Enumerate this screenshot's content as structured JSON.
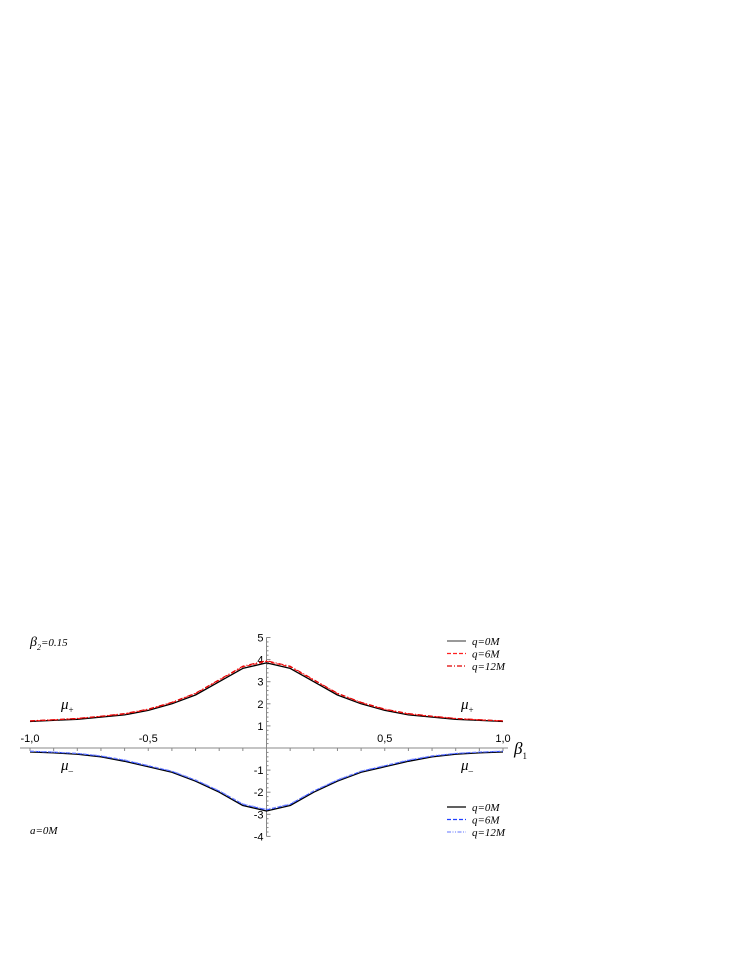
{
  "chart_data": {
    "type": "line",
    "xlabel": "β",
    "xlabel_sub": "1",
    "xlim": [
      -1,
      1
    ],
    "ylim": [
      -4,
      5
    ],
    "x_ticks": [
      {
        "v": -1,
        "label": "-1,0"
      },
      {
        "v": -0.5,
        "label": "-0,5"
      },
      {
        "v": 0.5,
        "label": "0,5"
      },
      {
        "v": 1,
        "label": "1,0"
      }
    ],
    "y_ticks": [
      {
        "v": 5,
        "label": "5"
      },
      {
        "v": 4,
        "label": "4"
      },
      {
        "v": 3,
        "label": "3"
      },
      {
        "v": 2,
        "label": "2"
      },
      {
        "v": 1,
        "label": "1"
      },
      {
        "v": -1,
        "label": "-1"
      },
      {
        "v": -2,
        "label": "-2"
      },
      {
        "v": -3,
        "label": "-3"
      },
      {
        "v": -4,
        "label": "-4"
      }
    ],
    "grid": false,
    "annotations": {
      "param_top": {
        "main": "β",
        "sub": "2",
        "rest": "=0.15"
      },
      "param_bottom": "a=0M",
      "mu_plus": {
        "main": "μ",
        "sub": "+"
      },
      "mu_minus": {
        "main": "μ",
        "sub": "–"
      }
    },
    "x": [
      -1,
      -0.9,
      -0.8,
      -0.7,
      -0.6,
      -0.5,
      -0.4,
      -0.3,
      -0.2,
      -0.1,
      0,
      0.1,
      0.2,
      0.3,
      0.4,
      0.5,
      0.6,
      0.7,
      0.8,
      0.9,
      1
    ],
    "legend_top": {
      "placement": "top-right",
      "entries": [
        "q=0M",
        "q=6M",
        "q=12M"
      ]
    },
    "legend_bottom": {
      "placement": "bottom-right",
      "entries": [
        "q=0M",
        "q=6M",
        "q=12M"
      ]
    },
    "series": [
      {
        "name": "q=0M",
        "branch": "μ+",
        "color": "#000000",
        "style": "solid",
        "legend_color": "#999999",
        "values": [
          1.2,
          1.25,
          1.3,
          1.4,
          1.5,
          1.7,
          2.0,
          2.4,
          3.0,
          3.6,
          3.85,
          3.6,
          3.0,
          2.4,
          2.0,
          1.7,
          1.5,
          1.4,
          1.3,
          1.25,
          1.2
        ]
      },
      {
        "name": "q=6M",
        "branch": "μ+",
        "color": "#ff2020",
        "style": "dashed",
        "values": [
          1.22,
          1.27,
          1.33,
          1.43,
          1.54,
          1.74,
          2.05,
          2.46,
          3.07,
          3.67,
          3.92,
          3.67,
          3.07,
          2.46,
          2.05,
          1.74,
          1.54,
          1.43,
          1.33,
          1.27,
          1.22
        ]
      },
      {
        "name": "q=12M",
        "branch": "μ+",
        "color": "#e00000",
        "style": "dashdot",
        "values": [
          1.23,
          1.28,
          1.34,
          1.44,
          1.56,
          1.76,
          2.07,
          2.48,
          3.09,
          3.7,
          3.95,
          3.7,
          3.09,
          2.48,
          2.07,
          1.76,
          1.56,
          1.44,
          1.34,
          1.28,
          1.23
        ]
      },
      {
        "name": "q=0M",
        "branch": "μ-",
        "color": "#000000",
        "style": "solid",
        "values": [
          -0.18,
          -0.22,
          -0.28,
          -0.4,
          -0.6,
          -0.85,
          -1.1,
          -1.5,
          -2.0,
          -2.6,
          -2.85,
          -2.6,
          -2.0,
          -1.5,
          -1.1,
          -0.85,
          -0.6,
          -0.4,
          -0.28,
          -0.22,
          -0.18
        ]
      },
      {
        "name": "q=6M",
        "branch": "μ-",
        "color": "#2040ff",
        "style": "dashed",
        "values": [
          -0.15,
          -0.19,
          -0.25,
          -0.37,
          -0.56,
          -0.81,
          -1.06,
          -1.46,
          -1.95,
          -2.55,
          -2.8,
          -2.55,
          -1.95,
          -1.46,
          -1.06,
          -0.81,
          -0.56,
          -0.37,
          -0.25,
          -0.19,
          -0.15
        ]
      },
      {
        "name": "q=12M",
        "branch": "μ-",
        "color": "#8090ff",
        "style": "dashdotdot",
        "values": [
          -0.14,
          -0.18,
          -0.24,
          -0.35,
          -0.54,
          -0.79,
          -1.04,
          -1.44,
          -1.93,
          -2.53,
          -2.78,
          -2.53,
          -1.93,
          -1.44,
          -1.04,
          -0.79,
          -0.54,
          -0.35,
          -0.24,
          -0.18,
          -0.14
        ]
      }
    ]
  }
}
